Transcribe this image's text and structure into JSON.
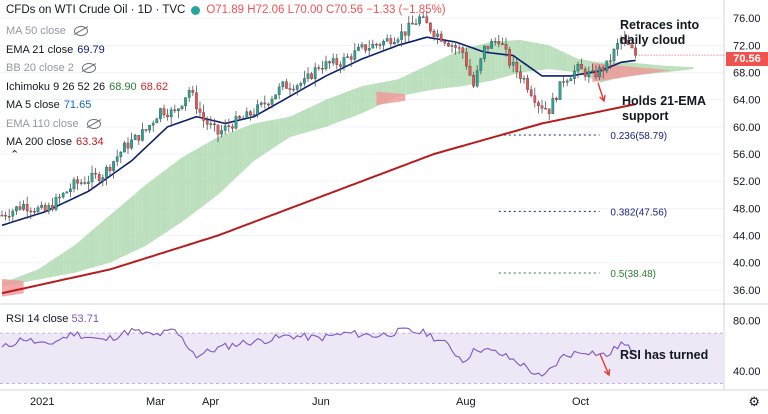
{
  "header": {
    "title": "CFDs on WTI Crude Oil · 1D · TVC",
    "ohlc": {
      "o": "O71.89",
      "h": "H72.06",
      "l": "L70.00",
      "c": "C70.56",
      "chg": "−1.33 (−1.85%)"
    }
  },
  "legend": [
    {
      "label": "MA 50 close",
      "value": "",
      "hidden": true
    },
    {
      "label": "EMA 21 close",
      "value": "69.79",
      "hidden": false,
      "color": "#0d1f6e"
    },
    {
      "label": "BB 20 close 2",
      "value": "",
      "hidden": true
    },
    {
      "label": "Ichimoku 9 26 52 26",
      "value": "68.90",
      "value2": "68.62",
      "hidden": false,
      "color": "#2e7d32",
      "color2": "#c62828"
    },
    {
      "label": "MA 5 close",
      "value": "71.65",
      "hidden": false,
      "color": "#1565c0"
    },
    {
      "label": "EMA 110 close",
      "value": "",
      "hidden": true
    },
    {
      "label": "MA 200 close",
      "value": "63.34",
      "hidden": false,
      "color": "#b71c1c"
    }
  ],
  "rsi_legend": {
    "label": "RSI 14 close",
    "value": "53.71"
  },
  "last_price": "70.56",
  "annotations": {
    "retrace": [
      "Retraces into",
      "daily cloud"
    ],
    "support": [
      "Holds 21-EMA",
      "support"
    ],
    "rsi": "RSI has turned"
  },
  "colors": {
    "up": "#26a69a",
    "down": "#ef5350",
    "ema21": "#0d1f6e",
    "ma200": "#b71c1c",
    "cloud_bull": "#a5d6a7",
    "cloud_bear": "#ef9a9a",
    "rsi_line": "#7e57c2",
    "rsi_band": "#ede7f6"
  },
  "chart_data": {
    "type": "candlestick",
    "x_ticks": [
      "2021",
      "Mar",
      "Apr",
      "Jun",
      "Aug",
      "Oct"
    ],
    "y_ticks": [
      "76.00",
      "72.00",
      "68.00",
      "64.00",
      "60.00",
      "56.00",
      "52.00",
      "48.00",
      "44.00",
      "40.00",
      "36.00"
    ],
    "y_range": [
      34.5,
      77.5
    ],
    "rsi_ticks": [
      "80.00",
      "40.00"
    ],
    "rsi_range": [
      28,
      90
    ],
    "rsi_band": [
      30,
      70
    ],
    "fib_levels": [
      {
        "label": "0.236(58.79)",
        "value": 58.79,
        "color": "#1a237e"
      },
      {
        "label": "0.382(47.56)",
        "value": 47.56,
        "color": "#1a237e"
      },
      {
        "label": "0.5(38.48)",
        "value": 38.48,
        "color": "#2e7d32"
      }
    ],
    "price_anchors": [
      [
        0,
        47
      ],
      [
        6,
        48.5
      ],
      [
        12,
        47.5
      ],
      [
        20,
        51.5
      ],
      [
        28,
        53
      ],
      [
        34,
        57
      ],
      [
        40,
        59.5
      ],
      [
        44,
        62.5
      ],
      [
        48,
        62
      ],
      [
        52,
        65.5
      ],
      [
        56,
        61
      ],
      [
        60,
        59
      ],
      [
        64,
        60.5
      ],
      [
        68,
        61.5
      ],
      [
        72,
        63
      ],
      [
        78,
        66
      ],
      [
        84,
        66.5
      ],
      [
        88,
        69
      ],
      [
        94,
        69.5
      ],
      [
        100,
        71.5
      ],
      [
        106,
        72.5
      ],
      [
        112,
        74
      ],
      [
        116,
        76
      ],
      [
        120,
        74
      ],
      [
        124,
        72.5
      ],
      [
        128,
        71
      ],
      [
        131,
        66
      ],
      [
        134,
        71.5
      ],
      [
        138,
        73
      ],
      [
        141,
        69.5
      ],
      [
        145,
        67
      ],
      [
        149,
        63.5
      ],
      [
        152,
        62.5
      ],
      [
        156,
        67
      ],
      [
        160,
        68.5
      ],
      [
        164,
        67.5
      ],
      [
        168,
        69
      ],
      [
        172,
        73
      ],
      [
        176,
        70.56
      ]
    ],
    "ema21_anchors": [
      [
        0,
        45.5
      ],
      [
        12,
        47.5
      ],
      [
        24,
        50.5
      ],
      [
        36,
        55
      ],
      [
        46,
        60
      ],
      [
        54,
        61.5
      ],
      [
        62,
        60.5
      ],
      [
        70,
        61.5
      ],
      [
        80,
        64.5
      ],
      [
        90,
        67.5
      ],
      [
        100,
        70
      ],
      [
        110,
        72
      ],
      [
        118,
        73.2
      ],
      [
        126,
        72.5
      ],
      [
        134,
        71
      ],
      [
        142,
        70.5
      ],
      [
        150,
        67.5
      ],
      [
        158,
        67.5
      ],
      [
        166,
        68.2
      ],
      [
        172,
        69.5
      ],
      [
        176,
        69.79
      ]
    ],
    "ma200_anchors": [
      [
        0,
        35.5
      ],
      [
        30,
        39
      ],
      [
        60,
        44
      ],
      [
        90,
        50
      ],
      [
        120,
        56
      ],
      [
        150,
        60.5
      ],
      [
        176,
        63.34
      ]
    ],
    "cloud_upper_anchors": [
      [
        0,
        37
      ],
      [
        10,
        39
      ],
      [
        20,
        42.5
      ],
      [
        30,
        47
      ],
      [
        40,
        51.5
      ],
      [
        50,
        55.5
      ],
      [
        60,
        58.5
      ],
      [
        70,
        60.5
      ],
      [
        80,
        61.5
      ],
      [
        90,
        64
      ],
      [
        100,
        66
      ],
      [
        110,
        67
      ],
      [
        120,
        69.5
      ],
      [
        128,
        71.5
      ],
      [
        136,
        72.5
      ],
      [
        144,
        72.8
      ],
      [
        152,
        72
      ],
      [
        160,
        70
      ],
      [
        166,
        69.5
      ],
      [
        174,
        69.5
      ],
      [
        184,
        69
      ],
      [
        192,
        68.8
      ]
    ],
    "cloud_lower_anchors": [
      [
        0,
        36.5
      ],
      [
        10,
        37.5
      ],
      [
        20,
        38.5
      ],
      [
        30,
        40
      ],
      [
        40,
        42.5
      ],
      [
        50,
        46
      ],
      [
        60,
        50
      ],
      [
        70,
        55
      ],
      [
        80,
        58.5
      ],
      [
        90,
        60
      ],
      [
        100,
        62
      ],
      [
        110,
        64.5
      ],
      [
        120,
        65.5
      ],
      [
        128,
        66
      ],
      [
        136,
        66.8
      ],
      [
        144,
        68
      ],
      [
        152,
        68.5
      ],
      [
        160,
        68
      ],
      [
        166,
        66.5
      ],
      [
        174,
        67.5
      ],
      [
        184,
        68
      ],
      [
        192,
        68.5
      ]
    ],
    "rsi_anchors": [
      [
        0,
        58
      ],
      [
        6,
        66
      ],
      [
        12,
        60
      ],
      [
        20,
        70
      ],
      [
        28,
        64
      ],
      [
        36,
        72
      ],
      [
        42,
        68
      ],
      [
        48,
        72
      ],
      [
        54,
        52
      ],
      [
        60,
        58
      ],
      [
        66,
        62
      ],
      [
        72,
        64
      ],
      [
        80,
        68
      ],
      [
        88,
        66
      ],
      [
        96,
        70
      ],
      [
        104,
        68
      ],
      [
        112,
        72
      ],
      [
        118,
        70
      ],
      [
        124,
        60
      ],
      [
        128,
        48
      ],
      [
        132,
        58
      ],
      [
        138,
        54
      ],
      [
        144,
        46
      ],
      [
        150,
        34
      ],
      [
        156,
        52
      ],
      [
        162,
        56
      ],
      [
        168,
        52
      ],
      [
        172,
        62
      ],
      [
        176,
        54
      ]
    ]
  }
}
